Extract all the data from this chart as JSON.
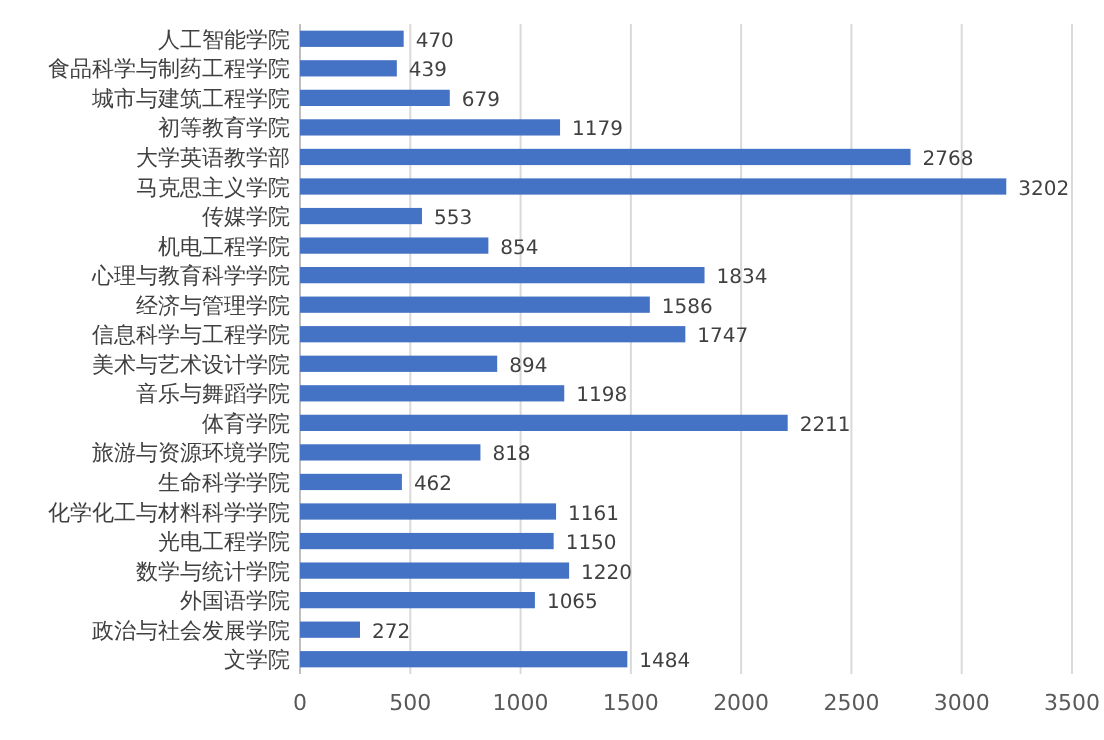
{
  "chart_data": {
    "type": "bar",
    "orientation": "horizontal",
    "categories": [
      "人工智能学院",
      "食品科学与制药工程学院",
      "城市与建筑工程学院",
      "初等教育学院",
      "大学英语教学部",
      "马克思主义学院",
      "传媒学院",
      "机电工程学院",
      "心理与教育科学学院",
      "经济与管理学院",
      "信息科学与工程学院",
      "美术与艺术设计学院",
      "音乐与舞蹈学院",
      "体育学院",
      "旅游与资源环境学院",
      "生命科学学院",
      "化学化工与材料科学学院",
      "光电工程学院",
      "数学与统计学院",
      "外国语学院",
      "政治与社会发展学院",
      "文学院"
    ],
    "values": [
      470,
      439,
      679,
      1179,
      2768,
      3202,
      553,
      854,
      1834,
      1586,
      1747,
      894,
      1198,
      2211,
      818,
      462,
      1161,
      1150,
      1220,
      1065,
      272,
      1484
    ],
    "color": "#4472c4",
    "xlim": [
      0,
      3500
    ],
    "xticks": [
      0,
      500,
      1000,
      1500,
      2000,
      2500,
      3000,
      3500
    ],
    "grid": "x",
    "data_labels": true
  }
}
